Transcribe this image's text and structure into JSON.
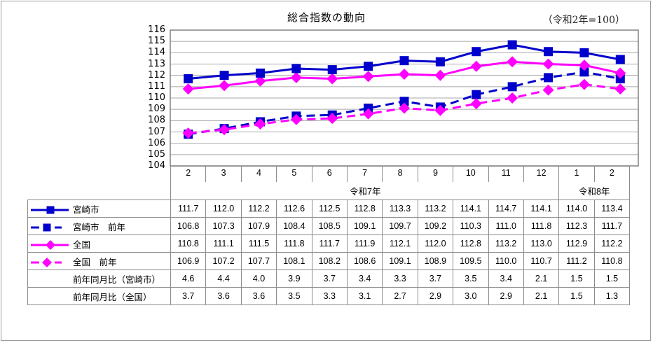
{
  "title": "総合指数の動向",
  "base_note": "（令和2年=100）",
  "chart_data": {
    "type": "line",
    "title": "総合指数の動向",
    "subtitle": "（令和2年=100）",
    "xlabel": "",
    "ylabel": "",
    "ylim": [
      104,
      116
    ],
    "y_ticks": [
      116,
      115,
      114,
      113,
      112,
      111,
      110,
      109,
      108,
      107,
      106,
      105,
      104
    ],
    "grid": true,
    "legend_position": "table-left",
    "categories": [
      "2",
      "3",
      "4",
      "5",
      "6",
      "7",
      "8",
      "9",
      "10",
      "11",
      "12",
      "1",
      "2"
    ],
    "year_groups": [
      {
        "label": "令和7年",
        "span": 11
      },
      {
        "label": "令和8年",
        "span": 2
      }
    ],
    "series": [
      {
        "name": "宮崎市",
        "color": "#0000cc",
        "style": "solid",
        "marker": "square",
        "values": [
          111.7,
          112.0,
          112.2,
          112.6,
          112.5,
          112.8,
          113.3,
          113.2,
          114.1,
          114.7,
          114.1,
          114.0,
          113.4
        ]
      },
      {
        "name": "宮崎市　前年",
        "color": "#0000cc",
        "style": "dashed",
        "marker": "square",
        "values": [
          106.8,
          107.3,
          107.9,
          108.4,
          108.5,
          109.1,
          109.7,
          109.2,
          110.3,
          111.0,
          111.8,
          112.3,
          111.7
        ]
      },
      {
        "name": "全国",
        "color": "#ff00ff",
        "style": "solid",
        "marker": "diamond",
        "values": [
          110.8,
          111.1,
          111.5,
          111.8,
          111.7,
          111.9,
          112.1,
          112.0,
          112.8,
          113.2,
          113.0,
          112.9,
          112.2
        ]
      },
      {
        "name": "全国　前年",
        "color": "#ff00ff",
        "style": "dashed",
        "marker": "diamond",
        "values": [
          106.9,
          107.2,
          107.7,
          108.1,
          108.2,
          108.6,
          109.1,
          108.9,
          109.5,
          110.0,
          110.7,
          111.2,
          110.8
        ]
      }
    ],
    "table_rows": [
      {
        "name": "前年同月比（宮崎市）",
        "values": [
          4.6,
          4.4,
          4.0,
          3.9,
          3.7,
          3.4,
          3.3,
          3.7,
          3.5,
          3.4,
          2.1,
          1.5,
          1.5
        ]
      },
      {
        "name": "前年同月比（全国）",
        "values": [
          3.7,
          3.6,
          3.6,
          3.5,
          3.3,
          3.1,
          2.7,
          2.9,
          3.0,
          2.9,
          2.1,
          1.5,
          1.3
        ]
      }
    ]
  },
  "table": {
    "months": [
      "2",
      "3",
      "4",
      "5",
      "6",
      "7",
      "8",
      "9",
      "10",
      "11",
      "12",
      "1",
      "2"
    ],
    "years": [
      "令和7年",
      "令和8年"
    ],
    "rows": [
      {
        "label": "宮崎市",
        "values": [
          "111.7",
          "112.0",
          "112.2",
          "112.6",
          "112.5",
          "112.8",
          "113.3",
          "113.2",
          "114.1",
          "114.7",
          "114.1",
          "114.0",
          "113.4"
        ]
      },
      {
        "label": "宮崎市　前年",
        "values": [
          "106.8",
          "107.3",
          "107.9",
          "108.4",
          "108.5",
          "109.1",
          "109.7",
          "109.2",
          "110.3",
          "111.0",
          "111.8",
          "112.3",
          "111.7"
        ]
      },
      {
        "label": "全国",
        "values": [
          "110.8",
          "111.1",
          "111.5",
          "111.8",
          "111.7",
          "111.9",
          "112.1",
          "112.0",
          "112.8",
          "113.2",
          "113.0",
          "112.9",
          "112.2"
        ]
      },
      {
        "label": "全国　前年",
        "values": [
          "106.9",
          "107.2",
          "107.7",
          "108.1",
          "108.2",
          "108.6",
          "109.1",
          "108.9",
          "109.5",
          "110.0",
          "110.7",
          "111.2",
          "110.8"
        ]
      },
      {
        "label": "前年同月比（宮崎市）",
        "values": [
          "4.6",
          "4.4",
          "4.0",
          "3.9",
          "3.7",
          "3.4",
          "3.3",
          "3.7",
          "3.5",
          "3.4",
          "2.1",
          "1.5",
          "1.5"
        ]
      },
      {
        "label": "前年同月比（全国）",
        "values": [
          "3.7",
          "3.6",
          "3.6",
          "3.5",
          "3.3",
          "3.1",
          "2.7",
          "2.9",
          "3.0",
          "2.9",
          "2.1",
          "1.5",
          "1.3"
        ]
      }
    ]
  }
}
